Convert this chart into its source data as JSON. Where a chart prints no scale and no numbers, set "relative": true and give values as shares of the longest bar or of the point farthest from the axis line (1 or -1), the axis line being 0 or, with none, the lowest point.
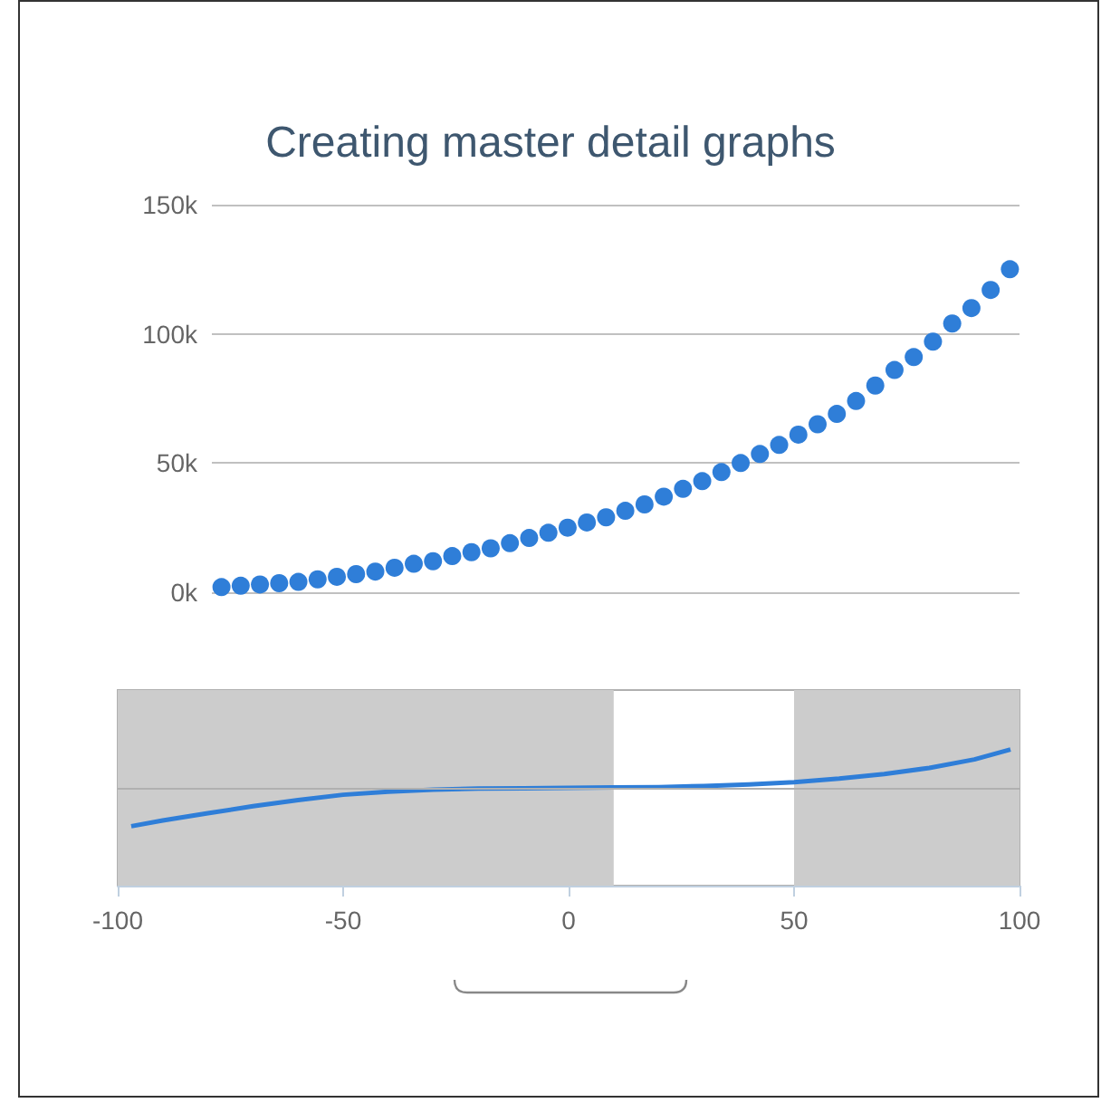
{
  "chart_data": [
    {
      "type": "scatter",
      "title": "Creating master detail graphs",
      "categories": [
        null,
        null,
        null,
        null,
        null,
        null,
        null,
        null,
        null,
        null,
        null,
        null,
        null,
        null,
        null,
        null,
        null,
        null,
        null,
        null,
        null,
        null,
        null,
        null,
        null,
        null,
        null,
        null,
        null,
        null,
        null,
        null,
        null,
        null,
        null,
        null,
        null,
        null,
        null,
        null,
        null,
        null
      ],
      "series": [
        {
          "color": "#2f7ed8",
          "values": [
            2000,
            2500,
            3000,
            3500,
            4000,
            5000,
            6000,
            7000,
            8000,
            9500,
            11000,
            12000,
            14000,
            15500,
            17000,
            19000,
            21000,
            23000,
            25000,
            27000,
            29000,
            31500,
            34000,
            37000,
            40000,
            43000,
            46500,
            50000,
            53500,
            57000,
            61000,
            65000,
            69000,
            74000,
            80000,
            86000,
            91000,
            97000,
            104000,
            110000,
            117000,
            125000
          ]
        }
      ],
      "ylim": [
        0,
        150000
      ],
      "yticks": [
        {
          "value": 0,
          "label": "0k"
        },
        {
          "value": 50000,
          "label": "50k"
        },
        {
          "value": 100000,
          "label": "100k"
        },
        {
          "value": 150000,
          "label": "150k"
        }
      ],
      "tick_labels": "y",
      "grid": "y",
      "marker": "circle"
    },
    {
      "type": "line",
      "relative": true,
      "x": [
        -97,
        -90,
        -80,
        -70,
        -60,
        -50,
        -40,
        -30,
        -20,
        -10,
        0,
        10,
        20,
        30,
        40,
        50,
        60,
        70,
        80,
        90,
        98
      ],
      "series": [
        {
          "color": "#2f7ed8",
          "values": [
            -1,
            -0.85,
            -0.66,
            -0.48,
            -0.32,
            -0.18,
            -0.1,
            -0.05,
            -0.02,
            -0.01,
            0,
            0.01,
            0.02,
            0.05,
            0.09,
            0.15,
            0.24,
            0.36,
            0.52,
            0.74,
            1
          ]
        }
      ],
      "xlim": [
        -100,
        100
      ],
      "xticks": [
        -100,
        -50,
        0,
        50,
        100
      ],
      "tick_labels": "x",
      "grid": false,
      "marker": "none",
      "line_style": "solid",
      "bands": [
        {
          "axis": "x",
          "from": -100,
          "to": 10,
          "color": "#cccccc"
        },
        {
          "axis": "x",
          "from": 50,
          "to": 100,
          "color": "#cccccc"
        }
      ]
    }
  ]
}
